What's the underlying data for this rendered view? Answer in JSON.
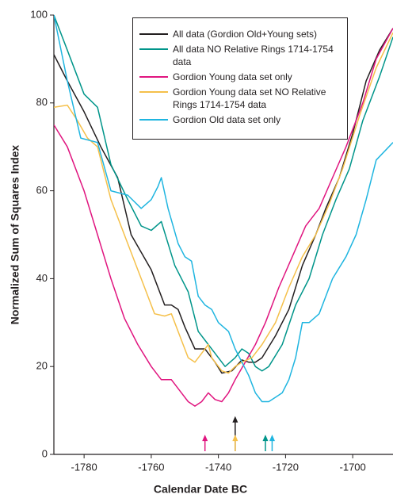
{
  "chart_data": {
    "type": "line",
    "x_label": "Calendar Date BC",
    "y_label": "Normalized Sum of Squares Index",
    "xlim": [
      -1789,
      -1688
    ],
    "ylim": [
      0,
      100
    ],
    "xticks": [
      -1780,
      -1760,
      -1740,
      -1720,
      -1700
    ],
    "yticks": [
      0,
      20,
      40,
      60,
      80,
      100
    ],
    "legend": "upper right",
    "series": [
      {
        "name": "All data (Gordion Old+Young sets)",
        "color": "#231f20",
        "x": [
          -1789,
          -1785,
          -1780,
          -1775,
          -1770,
          -1766,
          -1760,
          -1756,
          -1754,
          -1752,
          -1750,
          -1747,
          -1744,
          -1743,
          -1741,
          -1739,
          -1736,
          -1733,
          -1731,
          -1729,
          -1727,
          -1723,
          -1719,
          -1715,
          -1711,
          -1708,
          -1704,
          -1700,
          -1696,
          -1692,
          -1688
        ],
        "values": [
          91,
          85,
          78,
          70,
          63,
          50,
          42,
          34,
          34,
          33,
          29,
          24,
          24,
          23,
          21,
          18.5,
          19,
          21.5,
          21,
          21,
          22,
          27,
          33,
          43,
          50,
          56,
          63,
          73,
          85,
          92,
          97
        ]
      },
      {
        "name": "All data NO Relative Rings 1714-1754 data",
        "color": "#00958a",
        "x": [
          -1789,
          -1785,
          -1780,
          -1776,
          -1772,
          -1767,
          -1763,
          -1760,
          -1757,
          -1753,
          -1749,
          -1746,
          -1744,
          -1741,
          -1738,
          -1735,
          -1733,
          -1731,
          -1729,
          -1727,
          -1725,
          -1721,
          -1717,
          -1713,
          -1709,
          -1705,
          -1701,
          -1697,
          -1692,
          -1688
        ],
        "values": [
          100,
          92,
          82,
          79,
          66,
          58,
          52,
          51,
          53,
          43,
          37,
          28,
          26,
          23,
          20,
          22,
          24,
          23,
          20,
          19,
          20,
          25,
          34,
          40,
          50,
          58,
          65,
          76,
          86,
          95
        ]
      },
      {
        "name": "Gordion Young data set only",
        "color": "#e0157f",
        "x": [
          -1789,
          -1785,
          -1780,
          -1776,
          -1772,
          -1768,
          -1764,
          -1760,
          -1757,
          -1754,
          -1751,
          -1749,
          -1747,
          -1745,
          -1743,
          -1741,
          -1739,
          -1737,
          -1735,
          -1732,
          -1729,
          -1726,
          -1722,
          -1718,
          -1714,
          -1710,
          -1706,
          -1702,
          -1697,
          -1693,
          -1688
        ],
        "values": [
          75,
          70,
          60,
          50,
          40,
          31,
          25,
          20,
          17,
          17,
          14,
          12,
          11,
          12,
          14,
          12.5,
          12,
          14,
          17,
          21,
          25,
          30,
          38,
          45,
          52,
          56,
          63,
          70,
          80,
          90,
          97
        ]
      },
      {
        "name": "Gordion Young data set NO Relative Rings 1714-1754 data",
        "color": "#f5c04a",
        "x": [
          -1789,
          -1785,
          -1782,
          -1779,
          -1776,
          -1772,
          -1767,
          -1763,
          -1759,
          -1756,
          -1754,
          -1751,
          -1749,
          -1747,
          -1745,
          -1743,
          -1742,
          -1739,
          -1737,
          -1735,
          -1733,
          -1730,
          -1727,
          -1723,
          -1719,
          -1715,
          -1711,
          -1707,
          -1703,
          -1698,
          -1693,
          -1688
        ],
        "values": [
          79,
          79.5,
          76,
          72,
          70,
          58,
          48,
          40,
          32,
          31.5,
          32,
          26,
          22,
          21,
          23,
          25,
          22,
          19,
          18.5,
          20,
          21,
          22,
          25,
          30,
          38,
          45,
          50,
          57,
          65,
          77,
          88,
          96
        ]
      },
      {
        "name": "Gordion Old data set only",
        "color": "#1fb5e0",
        "x": [
          -1789,
          -1785,
          -1781,
          -1776,
          -1772,
          -1767,
          -1763,
          -1760,
          -1758,
          -1757,
          -1755,
          -1752,
          -1750,
          -1748,
          -1746,
          -1744,
          -1742,
          -1740,
          -1737,
          -1735,
          -1733,
          -1731,
          -1729,
          -1727,
          -1725,
          -1723,
          -1721,
          -1719,
          -1717,
          -1715,
          -1713,
          -1710,
          -1706,
          -1702,
          -1699,
          -1696,
          -1693,
          -1688
        ],
        "values": [
          100,
          85,
          72,
          71,
          60,
          59,
          56,
          58,
          61,
          63,
          56,
          48,
          45,
          44,
          36,
          34,
          33,
          30,
          28,
          24,
          21,
          18,
          14,
          12,
          12,
          13,
          14,
          17,
          22,
          30,
          30,
          32,
          40,
          45,
          50,
          58,
          67,
          71
        ]
      }
    ],
    "markers": [
      {
        "x": -1744,
        "y": 4.5,
        "color": "#e0157f"
      },
      {
        "x": -1735,
        "y": 8.7,
        "color": "#231f20"
      },
      {
        "x": -1735,
        "y": 4.5,
        "color": "#f5c04a"
      },
      {
        "x": -1726,
        "y": 4.5,
        "color": "#00958a"
      },
      {
        "x": -1724,
        "y": 4.5,
        "color": "#1fb5e0"
      }
    ]
  }
}
